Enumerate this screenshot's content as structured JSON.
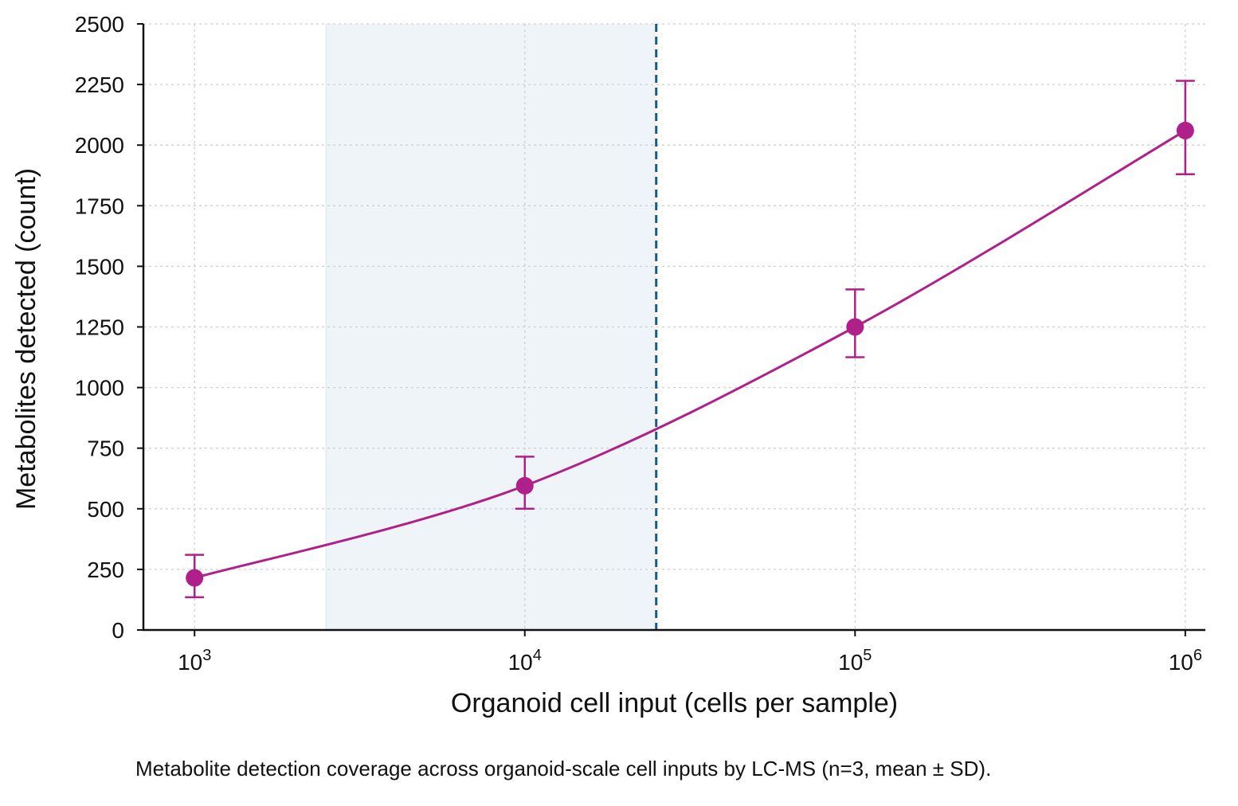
{
  "caption": "Metabolite detection coverage across organoid-scale cell inputs by LC-MS (n=3, mean ± SD).",
  "chart_data": {
    "type": "line",
    "xlabel": "Organoid cell input (cells per sample)",
    "ylabel": "Metabolites detected (count)",
    "x_scale": "log",
    "xlim": [
      700,
      1150000
    ],
    "ylim": [
      0,
      2500
    ],
    "x_ticks": [
      {
        "value": 1000,
        "base": "10",
        "exp": "3"
      },
      {
        "value": 10000,
        "base": "10",
        "exp": "4"
      },
      {
        "value": 100000,
        "base": "10",
        "exp": "5"
      },
      {
        "value": 1000000,
        "base": "10",
        "exp": "6"
      }
    ],
    "y_ticks": [
      0,
      250,
      500,
      750,
      1000,
      1250,
      1500,
      1750,
      2000,
      2250,
      2500
    ],
    "grid": true,
    "series": [
      {
        "x": [
          1000,
          10000,
          100000,
          1000000
        ],
        "y": [
          215,
          595,
          1250,
          2060
        ],
        "error_low": [
          135,
          500,
          1125,
          1880
        ],
        "error_high": [
          310,
          715,
          1405,
          2265
        ],
        "color": "#b0208a"
      }
    ],
    "shaded_region": {
      "x": [
        2500,
        25000
      ],
      "color": "#eef4f8"
    },
    "vline": {
      "x": 25000,
      "color": "#1a5a8a",
      "style": "dashed"
    }
  }
}
